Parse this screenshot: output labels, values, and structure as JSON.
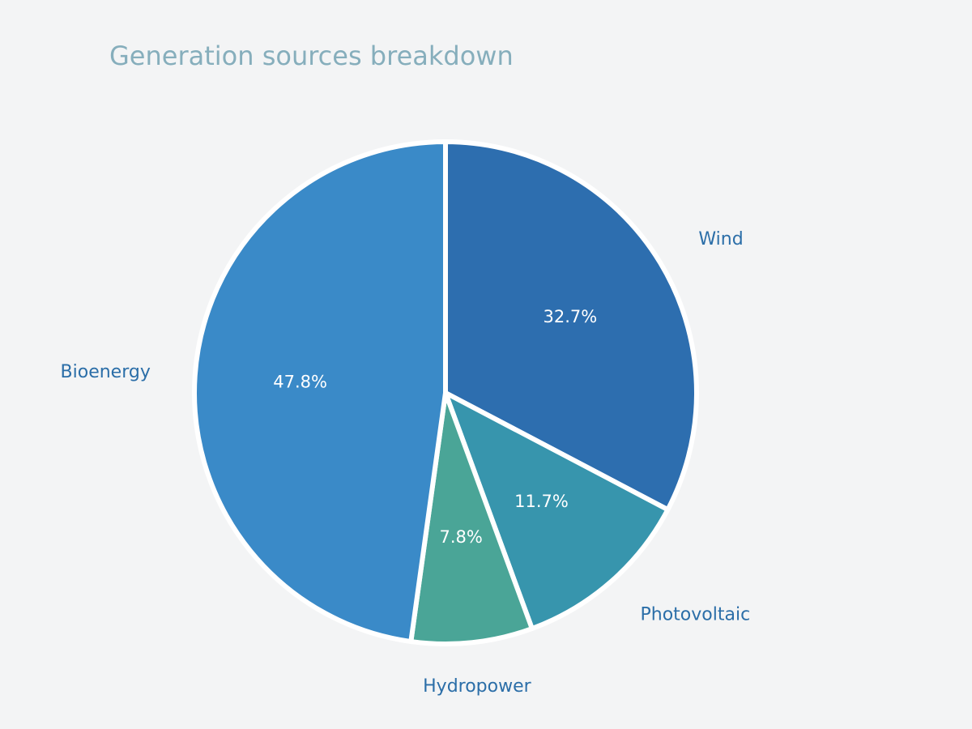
{
  "chart_data": {
    "type": "pie",
    "title": "Generation sources breakdown",
    "categories": [
      "Wind",
      "Photovoltaic",
      "Hydropower",
      "Bioenergy"
    ],
    "values": [
      32.7,
      11.7,
      7.8,
      47.8
    ],
    "value_labels": [
      "32.7%",
      "11.7%",
      "7.8%",
      "47.8%"
    ],
    "colors": [
      "#2d6eaf",
      "#3795ad",
      "#4aa597",
      "#3a8ac8"
    ]
  }
}
